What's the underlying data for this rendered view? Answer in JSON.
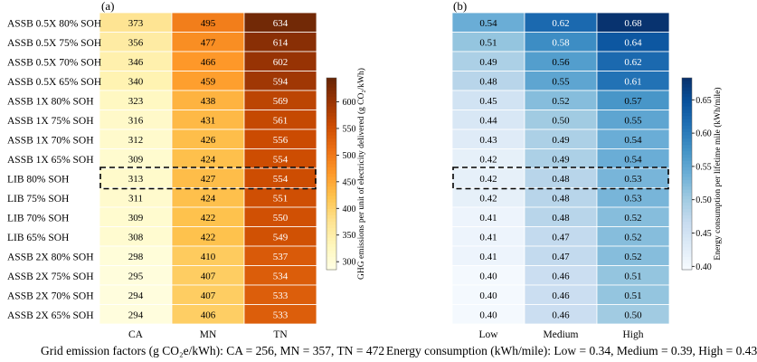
{
  "chart_data": [
    {
      "type": "heatmap",
      "panel_label": "(a)",
      "rows": [
        "ASSB 0.5X 80% SOH",
        "ASSB 0.5X 75% SOH",
        "ASSB 0.5X 70% SOH",
        "ASSB 0.5X 65% SOH",
        "ASSB 1X 80% SOH",
        "ASSB 1X 75% SOH",
        "ASSB 1X 70% SOH",
        "ASSB 1X 65% SOH",
        "LIB 80% SOH",
        "LIB 75% SOH",
        "LIB 70% SOH",
        "LIB 65% SOH",
        "ASSB 2X 80% SOH",
        "ASSB 2X 75% SOH",
        "ASSB 2X 70% SOH",
        "ASSB 2X 65% SOH"
      ],
      "columns": [
        "CA",
        "MN",
        "TN"
      ],
      "values": [
        [
          373,
          495,
          634
        ],
        [
          356,
          477,
          614
        ],
        [
          346,
          466,
          602
        ],
        [
          340,
          459,
          594
        ],
        [
          323,
          438,
          569
        ],
        [
          316,
          431,
          561
        ],
        [
          312,
          426,
          556
        ],
        [
          309,
          424,
          554
        ],
        [
          313,
          427,
          554
        ],
        [
          311,
          424,
          551
        ],
        [
          309,
          422,
          550
        ],
        [
          308,
          422,
          549
        ],
        [
          298,
          410,
          537
        ],
        [
          295,
          407,
          534
        ],
        [
          294,
          407,
          533
        ],
        [
          294,
          406,
          533
        ]
      ],
      "highlighted_row": "LIB 80% SOH",
      "colorbar_label": "GHG emissions per unit of electricity delivered (g CO₂/kWh)",
      "colorbar_ticks": [
        300,
        350,
        400,
        450,
        500,
        550,
        600
      ],
      "colorbar_range": [
        285,
        645
      ],
      "colormap": [
        "#ffffe5",
        "#fff7bc",
        "#fee391",
        "#fec44f",
        "#fe9929",
        "#ec7014",
        "#cc4c02",
        "#993404",
        "#662506"
      ]
    },
    {
      "type": "heatmap",
      "panel_label": "(b)",
      "rows": [
        "ASSB 0.5X 80% SOH",
        "ASSB 0.5X 75% SOH",
        "ASSB 0.5X 70% SOH",
        "ASSB 0.5X 65% SOH",
        "ASSB 1X 80% SOH",
        "ASSB 1X 75% SOH",
        "ASSB 1X 70% SOH",
        "ASSB 1X 65% SOH",
        "LIB 80% SOH",
        "LIB 75% SOH",
        "LIB 70% SOH",
        "LIB 65% SOH",
        "ASSB 2X 80% SOH",
        "ASSB 2X 75% SOH",
        "ASSB 2X 70% SOH",
        "ASSB 2X 65% SOH"
      ],
      "columns": [
        "Low",
        "Medium",
        "High"
      ],
      "values": [
        [
          0.54,
          0.62,
          0.68
        ],
        [
          0.51,
          0.58,
          0.64
        ],
        [
          0.49,
          0.56,
          0.62
        ],
        [
          0.48,
          0.55,
          0.61
        ],
        [
          0.45,
          0.52,
          0.57
        ],
        [
          0.44,
          0.5,
          0.55
        ],
        [
          0.43,
          0.49,
          0.54
        ],
        [
          0.42,
          0.49,
          0.54
        ],
        [
          0.42,
          0.48,
          0.53
        ],
        [
          0.42,
          0.48,
          0.53
        ],
        [
          0.41,
          0.48,
          0.52
        ],
        [
          0.41,
          0.47,
          0.52
        ],
        [
          0.41,
          0.47,
          0.52
        ],
        [
          0.4,
          0.46,
          0.51
        ],
        [
          0.4,
          0.46,
          0.51
        ],
        [
          0.4,
          0.46,
          0.5
        ]
      ],
      "value_format": "0.00",
      "highlighted_row": "LIB 80% SOH",
      "colorbar_label": "Energy consumption per lifetime mile (kWh/mile)",
      "colorbar_ticks": [
        0.4,
        0.45,
        0.5,
        0.55,
        0.6,
        0.65
      ],
      "colorbar_range": [
        0.395,
        0.683
      ],
      "colormap": [
        "#f7fbff",
        "#deebf7",
        "#c6dbef",
        "#9ecae1",
        "#6baed6",
        "#4292c6",
        "#2171b5",
        "#08519c",
        "#08306b"
      ]
    }
  ],
  "footer": {
    "grid_emission_factors": "Grid emission factors (g CO₂e/kWh):  CA = 256,  MN = 357,  TN = 472",
    "energy_consumption": "Energy consumption (kWh/mile):  Low = 0.34,  Medium = 0.39,  High = 0.43"
  }
}
